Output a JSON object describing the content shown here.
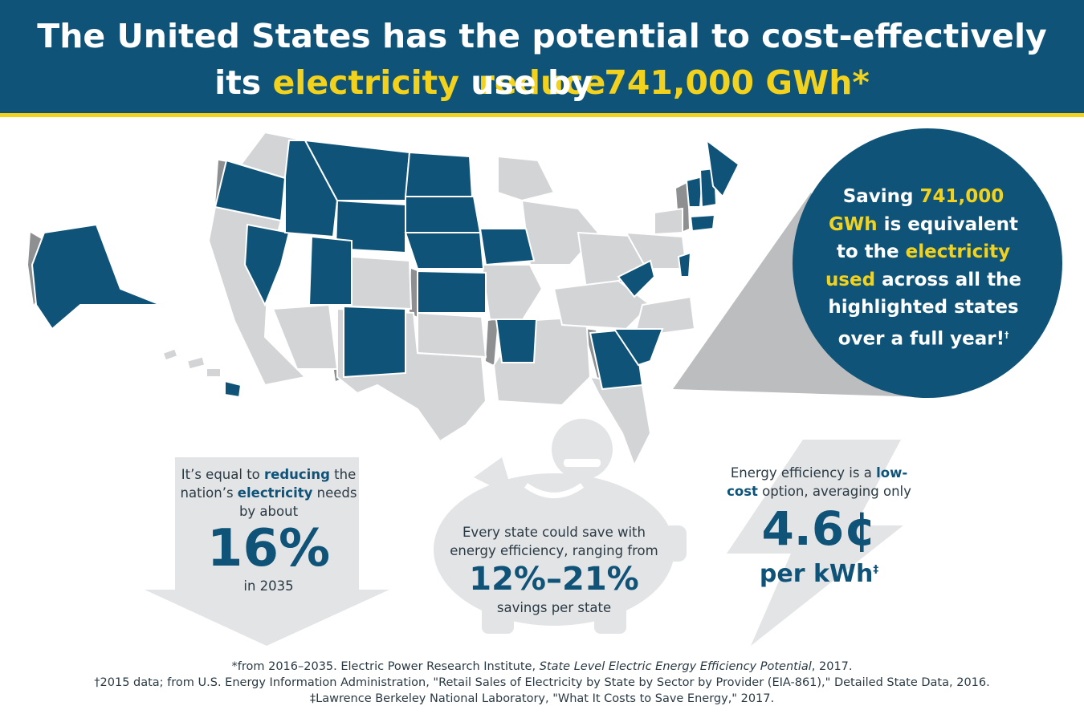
{
  "header": {
    "line1_a": "The United States has the potential to cost-effectively ",
    "line1_highlight": "reduce",
    "line2_a": "its ",
    "line2_highlight1": "electricity",
    "line2_b": " use by ",
    "line2_highlight2": "741,000 GWh*"
  },
  "bubble": {
    "t1": "Saving ",
    "h1": "741,000 GWh",
    "t2": " is equivalent to the ",
    "h2": "electricity used",
    "t3": " across all the highlighted states over a full year!",
    "mark": "†"
  },
  "stat_reduce": {
    "t1": "It’s equal to ",
    "b1": "reducing",
    "t2": " the nation’s ",
    "b2": "electricity",
    "t3": " needs by about",
    "value": "16%",
    "year": "in 2035"
  },
  "stat_save": {
    "text": "Every state could save with energy efficiency, ranging from",
    "value": "12%–21%",
    "caption": "savings per state"
  },
  "stat_cost": {
    "t1": "Energy efficiency is a ",
    "b1": "low-cost",
    "t2": " option, averaging only",
    "value": "4.6¢",
    "unit": "per kWh",
    "mark": "‡"
  },
  "footnotes": {
    "f1_a": "*from 2016–2035. Electric Power Research Institute, ",
    "f1_italic": "State Level Electric Energy Efficiency Potential",
    "f1_b": ", 2017.",
    "f2": "†2015 data; from U.S. Energy Information Administration, \"Retail Sales of Electricity by State by Sector by Provider (EIA-861),\" Detailed State Data, 2016.",
    "f3": "‡Lawrence Berkeley National Laboratory, \"What It Costs to Save Energy,\" 2017."
  },
  "colors": {
    "navy": "#0f5478",
    "yellow": "#f2d21c",
    "state_gray": "#d3d4d6",
    "shadow_gray": "#8e8f91",
    "graphic_gray": "#e3e4e6"
  }
}
